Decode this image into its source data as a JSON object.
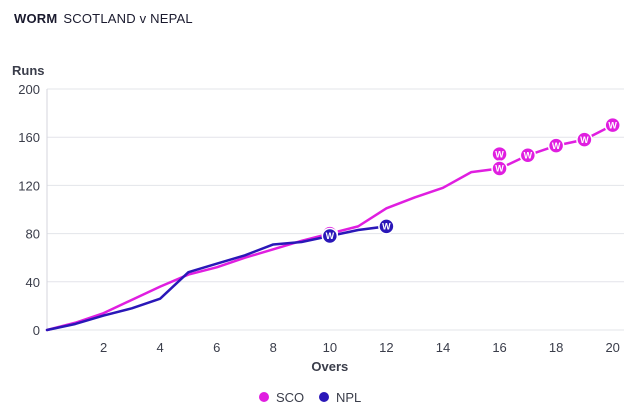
{
  "header": {
    "title_bold": "WORM",
    "title_rest": "SCOTLAND v NEPAL"
  },
  "chart_data": {
    "type": "line",
    "title": "WORM  SCOTLAND v NEPAL",
    "xlabel": "Overs",
    "ylabel": "Runs",
    "xlim": [
      0,
      20.4
    ],
    "ylim": [
      0,
      200
    ],
    "xticks": [
      2,
      4,
      6,
      8,
      10,
      12,
      14,
      16,
      18,
      20
    ],
    "yticks": [
      0,
      40,
      80,
      120,
      160,
      200
    ],
    "grid": "horizontal",
    "legend_position": "bottom-center",
    "wicket_marker_label": "W",
    "series": [
      {
        "name": "SCO",
        "color": "#e01ee0",
        "x": [
          0,
          1,
          2,
          3,
          4,
          5,
          6,
          7,
          8,
          9,
          10,
          11,
          12,
          13,
          14,
          15,
          16,
          17,
          18,
          19,
          20
        ],
        "y": [
          0,
          6,
          14,
          25,
          36,
          46,
          52,
          60,
          67,
          74,
          80,
          86,
          101,
          110,
          118,
          131,
          134,
          145,
          153,
          158,
          170
        ],
        "wickets": [
          {
            "x": 10,
            "y": 80
          },
          {
            "x": 16,
            "y": 146
          },
          {
            "x": 16,
            "y": 134
          },
          {
            "x": 17,
            "y": 145
          },
          {
            "x": 18,
            "y": 153
          },
          {
            "x": 19,
            "y": 158
          },
          {
            "x": 20,
            "y": 170
          }
        ]
      },
      {
        "name": "NPL",
        "color": "#2a17b8",
        "x": [
          0,
          1,
          2,
          3,
          4,
          5,
          6,
          7,
          8,
          9,
          10,
          11,
          12
        ],
        "y": [
          0,
          5,
          12,
          18,
          26,
          48,
          55,
          62,
          71,
          73,
          78,
          83,
          86
        ],
        "wickets": [
          {
            "x": 10,
            "y": 78
          },
          {
            "x": 12,
            "y": 86
          }
        ]
      }
    ]
  }
}
